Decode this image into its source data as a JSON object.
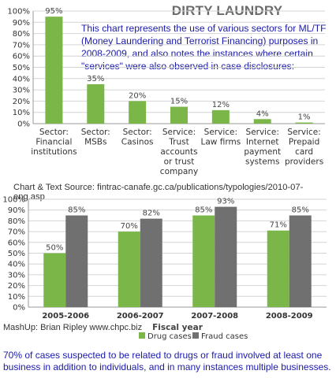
{
  "title": "DIRTY LAUNDRY",
  "description": "This chart represents the use of various sectors for ML/TF (Money Laundering and Terrorist Financing) purposes in 2008-2009, and also notes the instances where certain \"services\" were also observed in case disclosures:",
  "source": "Chart & Text Source: fintrac-canafe.gc.ca/publications/typologies/2010-07-eng.asp",
  "mashup": "MashUp: Brian Ripley www.chpc.biz",
  "footer": "70% of cases suspected to be related to drugs or fraud involved at least one business in addition to individuals, and in many instances multiple businesses.",
  "colors": {
    "green": "#7ab648",
    "grey": "#707070",
    "grid": "#d4d4d4",
    "text_blue": "#1a1aa8"
  },
  "chart_data": [
    {
      "type": "bar",
      "title": "",
      "xlabel": "",
      "ylabel": "",
      "ylim": [
        0,
        100
      ],
      "yticks": [
        "0%",
        "10%",
        "20%",
        "30%",
        "40%",
        "50%",
        "60%",
        "70%",
        "80%",
        "90%",
        "100%"
      ],
      "categories": [
        "Sector: Financial institutions",
        "Sector: MSBs",
        "Sector: Casinos",
        "Service: Trust accounts or trust company",
        "Service: Law firms",
        "Service: Internet payment systems",
        "Service: Prepaid card providers"
      ],
      "category_lines": [
        [
          "Sector:",
          "Financial",
          "institutions"
        ],
        [
          "Sector:",
          "MSBs"
        ],
        [
          "Sector:",
          "Casinos"
        ],
        [
          "Service:",
          "Trust",
          "accounts",
          "or trust",
          "company"
        ],
        [
          "Service:",
          "Law firms"
        ],
        [
          "Service:",
          "Internet",
          "payment",
          "systems"
        ],
        [
          "Service:",
          "Prepaid",
          "card",
          "providers"
        ]
      ],
      "values": [
        95,
        35,
        20,
        15,
        12,
        4,
        1
      ],
      "data_labels": [
        "95%",
        "35%",
        "20%",
        "15%",
        "12%",
        "4%",
        "1%"
      ],
      "grid": true
    },
    {
      "type": "bar",
      "title": "",
      "xlabel": "Fiscal year",
      "ylabel": "",
      "ylim": [
        0,
        100
      ],
      "yticks": [
        "0%",
        "10%",
        "20%",
        "30%",
        "40%",
        "50%",
        "60%",
        "70%",
        "80%",
        "90%",
        "100%"
      ],
      "categories": [
        "2005-2006",
        "2006-2007",
        "2007-2008",
        "2008-2009"
      ],
      "series": [
        {
          "name": "Drug cases",
          "values": [
            50,
            70,
            85,
            71
          ],
          "labels": [
            "50%",
            "70%",
            "85%",
            "71%"
          ]
        },
        {
          "name": "Fraud cases",
          "values": [
            85,
            82,
            93,
            85
          ],
          "labels": [
            "85%",
            "82%",
            "93%",
            "85%"
          ]
        }
      ],
      "legend": "bottom",
      "grid": true
    }
  ]
}
